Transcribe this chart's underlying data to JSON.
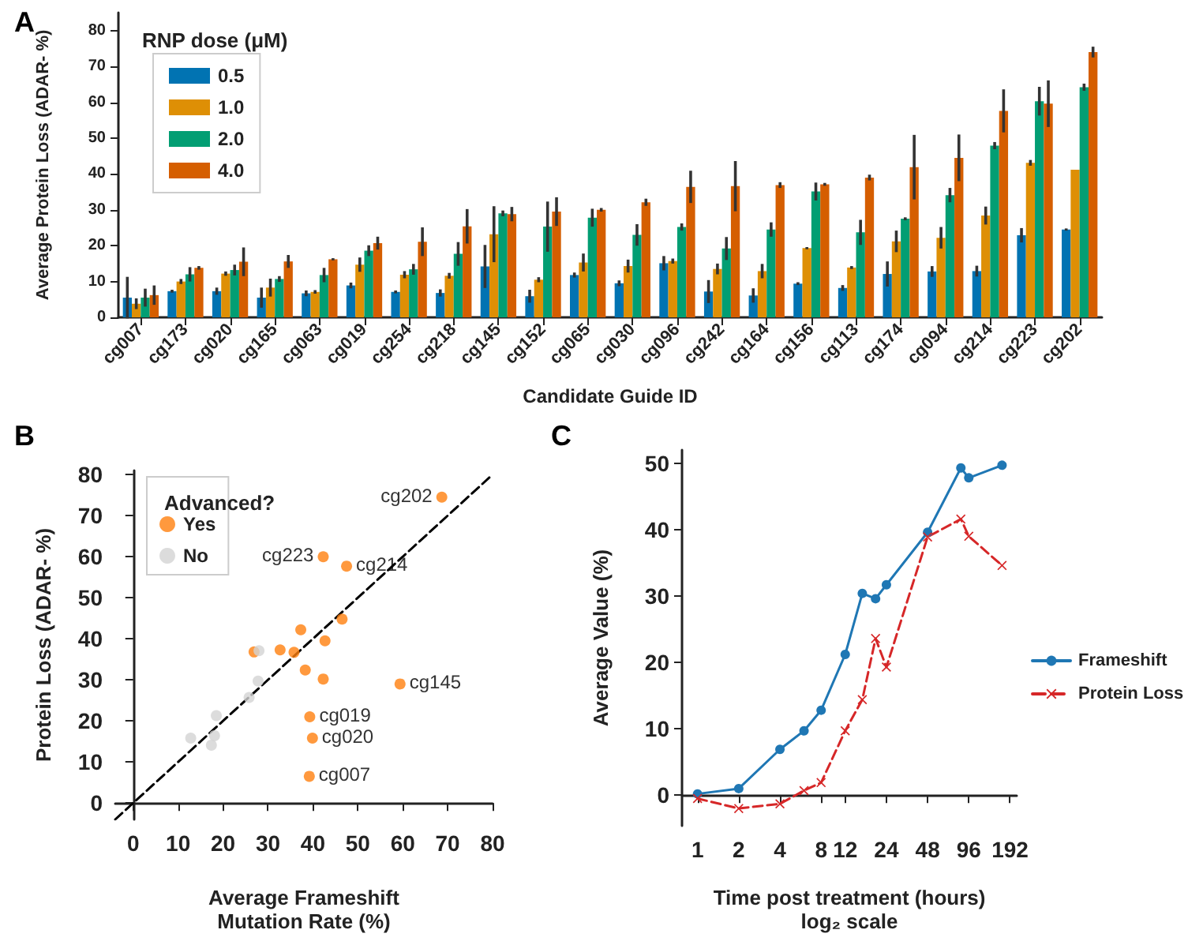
{
  "chart_data": [
    {
      "type": "bar",
      "title": "A",
      "xlabel": "Candidate Guide ID",
      "ylabel": "Average Protein Loss (ADAR- %)",
      "legend": "top left",
      "legend_title": "RNP dose (μM)",
      "categories": [
        "cg007",
        "cg173",
        "cg020",
        "cg165",
        "cg063",
        "cg019",
        "cg254",
        "cg218",
        "cg145",
        "cg152",
        "cg065",
        "cg030",
        "cg096",
        "cg242",
        "cg164",
        "cg156",
        "cg113",
        "cg174",
        "cg094",
        "cg214",
        "cg223",
        "cg202"
      ],
      "ylim": [
        0,
        85
      ],
      "yticks": [
        0,
        10,
        20,
        30,
        40,
        50,
        60,
        70,
        80
      ],
      "series": [
        {
          "name": "0.5",
          "color": "#0173b2",
          "values": [
            5.5,
            7.3,
            7.3,
            5.5,
            6.7,
            8.9,
            7.1,
            6.8,
            14.2,
            5.9,
            11.8,
            9.5,
            15.1,
            7.2,
            6.1,
            9.4,
            8.2,
            12.1,
            12.8,
            12.9,
            22.9,
            24.5
          ],
          "errors": [
            5.8,
            0.4,
            1,
            2.8,
            0.8,
            0.8,
            0.4,
            1,
            6,
            1.8,
            0.7,
            0.8,
            2,
            3.2,
            2,
            0.4,
            0.8,
            3.5,
            1.5,
            1.5,
            2,
            0.3
          ]
        },
        {
          "name": "1.0",
          "color": "#de8f05",
          "values": [
            3.8,
            10,
            12.2,
            8.3,
            7.1,
            14.7,
            11.9,
            11.6,
            23.2,
            10.5,
            15.3,
            14.3,
            15.7,
            13.5,
            12.9,
            19.3,
            13.9,
            21.2,
            22.2,
            28.4,
            43.1,
            41.2
          ],
          "errors": [
            1.5,
            0.7,
            0.6,
            2.5,
            0.5,
            2,
            1,
            0.8,
            7.8,
            0.7,
            2.5,
            1.8,
            0.7,
            1.5,
            2,
            0.3,
            0.4,
            3,
            3,
            2.5,
            0.8,
            null
          ]
        },
        {
          "name": "2.0",
          "color": "#029e73",
          "values": [
            5.5,
            12,
            13.2,
            10.7,
            11.8,
            18.6,
            13.4,
            17.7,
            29,
            25.3,
            27.8,
            23,
            25.2,
            19.2,
            24.5,
            35.1,
            23.7,
            27.5,
            34.1,
            47.9,
            60.3,
            64.2
          ],
          "errors": [
            2.5,
            2,
            1.5,
            0.8,
            2,
            1.5,
            1.5,
            3.3,
            0.8,
            7,
            2.5,
            3,
            1,
            3.2,
            2,
            2.5,
            3.5,
            0.4,
            2,
            1,
            4,
            1
          ]
        },
        {
          "name": "4.0",
          "color": "#d55e00",
          "values": [
            6.2,
            13.8,
            15.5,
            15.6,
            16.2,
            20.7,
            21.1,
            25.4,
            28.8,
            29.5,
            30,
            32.1,
            36.4,
            36.6,
            36.9,
            37.1,
            39,
            41.9,
            44.5,
            57.6,
            59.6,
            74
          ],
          "errors": [
            2.7,
            0.5,
            4,
            1.8,
            0.3,
            1.8,
            4,
            4.8,
            2,
            4,
            0.5,
            1,
            4.5,
            7,
            0.8,
            0.4,
            0.8,
            9,
            6.5,
            6,
            6.5,
            1.5
          ]
        }
      ]
    },
    {
      "type": "scatter",
      "title": "B",
      "xlabel": "Average Frameshift\nMutation Rate (%)",
      "ylabel": "Protein Loss (ADAR- %)",
      "legend": "top left",
      "legend_title": "Advanced?",
      "marker": "circle",
      "xlim": [
        -4,
        80
      ],
      "ylim": [
        -4,
        81
      ],
      "xticks": [
        0,
        10,
        20,
        30,
        40,
        50,
        60,
        70,
        80
      ],
      "yticks": [
        0,
        10,
        20,
        30,
        40,
        50,
        60,
        70,
        80
      ],
      "series": [
        {
          "name": "Yes",
          "color": "#ff7f0e",
          "x": [
            68.7,
            42.3,
            47.5,
            46.5,
            37.3,
            42.7,
            26.9,
            32.7,
            35.8,
            38.3,
            42.3,
            59.4,
            39.3,
            39.9,
            39.2
          ],
          "values": [
            74.5,
            60,
            57.7,
            44.8,
            42.2,
            39.5,
            36.8,
            37.3,
            36.7,
            32.4,
            30.2,
            29,
            21,
            15.8,
            6.5
          ]
        },
        {
          "name": "No",
          "color": "#d3d3d3",
          "x": [
            28,
            27.8,
            25.8,
            18.5,
            18.1,
            12.8,
            17.4
          ],
          "values": [
            37.1,
            29.7,
            25.7,
            21.3,
            16.4,
            15.8,
            14.1
          ]
        },
        {
          "type": "line",
          "color": "#000000",
          "line_style": "dashed",
          "marker": "none",
          "x": [
            -4,
            80
          ],
          "values": [
            -4,
            80
          ]
        }
      ],
      "annotations": [
        {
          "text": "cg202",
          "x": 68.7,
          "y": 74.5
        },
        {
          "text": "cg223",
          "x": 42.3,
          "y": 60
        },
        {
          "text": "cg214",
          "x": 47.5,
          "y": 57.7
        },
        {
          "text": "cg145",
          "x": 59.4,
          "y": 29
        },
        {
          "text": "cg019",
          "x": 39.3,
          "y": 21
        },
        {
          "text": "cg020",
          "x": 39.9,
          "y": 15.8
        },
        {
          "text": "cg007",
          "x": 39.2,
          "y": 6.5
        }
      ]
    },
    {
      "type": "line",
      "title": "C",
      "xlabel": "Time post treatment (hours)\nlog₂ scale",
      "ylabel": "Average Value (%)",
      "legend": "right",
      "log": "x",
      "x": [
        1,
        2,
        4,
        6,
        8,
        12,
        16,
        20,
        24,
        48,
        84,
        96,
        168
      ],
      "xlim": [
        0.77,
        215
      ],
      "xticks": [
        1,
        2,
        4,
        8,
        12,
        24,
        48,
        96,
        192
      ],
      "ylim": [
        -4.6,
        52
      ],
      "yticks": [
        0,
        10,
        20,
        30,
        40,
        50
      ],
      "series": [
        {
          "name": "Frameshift",
          "color": "#1f77b4",
          "marker": "circle",
          "line_style": "solid",
          "values": [
            0.2,
            1,
            6.9,
            9.7,
            12.8,
            21.2,
            30.4,
            29.6,
            31.7,
            39.6,
            49.3,
            47.8,
            49.7
          ]
        },
        {
          "name": "Protein Loss",
          "color": "#d62728",
          "marker": "cross",
          "line_style": "dashed",
          "values": [
            -0.5,
            -2,
            -1.3,
            0.7,
            1.9,
            9.7,
            14.4,
            23.6,
            19.3,
            38.9,
            41.6,
            39,
            34.6
          ]
        }
      ]
    }
  ]
}
